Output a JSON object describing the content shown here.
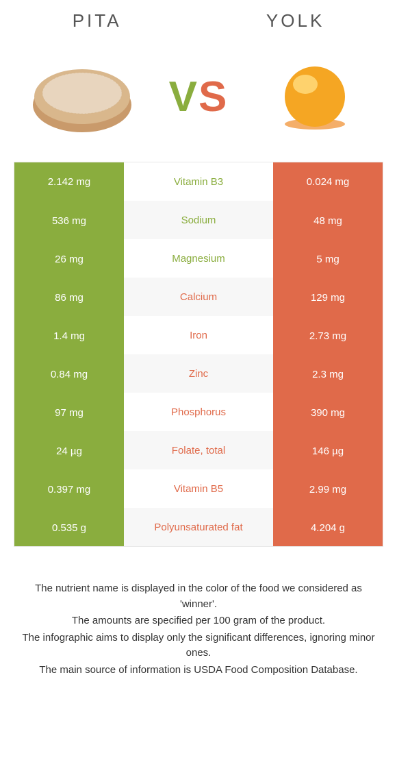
{
  "foods": {
    "left": {
      "name": "PITA",
      "color": "#8AAD3E"
    },
    "right": {
      "name": "YOLK",
      "color": "#E06A4A"
    }
  },
  "vs": {
    "v": "V",
    "s": "S"
  },
  "colors": {
    "left_bg": "#8AAD3E",
    "right_bg": "#E06A4A",
    "background": "#ffffff",
    "text": "#333333",
    "header_text": "#555555",
    "pita_fill": "#C99A6B",
    "pita_top": "#E8D5BE",
    "yolk_main": "#F5A623",
    "yolk_highlight": "#FFD97A",
    "yolk_base": "#F08C2A"
  },
  "nutrients": [
    {
      "name": "Vitamin B3",
      "left_val": "2.142 mg",
      "right_val": "0.024 mg",
      "winner": "left"
    },
    {
      "name": "Sodium",
      "left_val": "536 mg",
      "right_val": "48 mg",
      "winner": "left"
    },
    {
      "name": "Magnesium",
      "left_val": "26 mg",
      "right_val": "5 mg",
      "winner": "left"
    },
    {
      "name": "Calcium",
      "left_val": "86 mg",
      "right_val": "129 mg",
      "winner": "right"
    },
    {
      "name": "Iron",
      "left_val": "1.4 mg",
      "right_val": "2.73 mg",
      "winner": "right"
    },
    {
      "name": "Zinc",
      "left_val": "0.84 mg",
      "right_val": "2.3 mg",
      "winner": "right"
    },
    {
      "name": "Phosphorus",
      "left_val": "97 mg",
      "right_val": "390 mg",
      "winner": "right"
    },
    {
      "name": "Folate, total",
      "left_val": "24 µg",
      "right_val": "146 µg",
      "winner": "right"
    },
    {
      "name": "Vitamin B5",
      "left_val": "0.397 mg",
      "right_val": "2.99 mg",
      "winner": "right"
    },
    {
      "name": "Polyunsaturated fat",
      "left_val": "0.535 g",
      "right_val": "4.204 g",
      "winner": "right"
    }
  ],
  "footnotes": [
    "The nutrient name is displayed in the color of the food we considered as 'winner'.",
    "The amounts are specified per 100 gram of the product.",
    "The infographic aims to display only the significant differences, ignoring minor ones.",
    "The main source of information is USDA Food Composition Database."
  ]
}
